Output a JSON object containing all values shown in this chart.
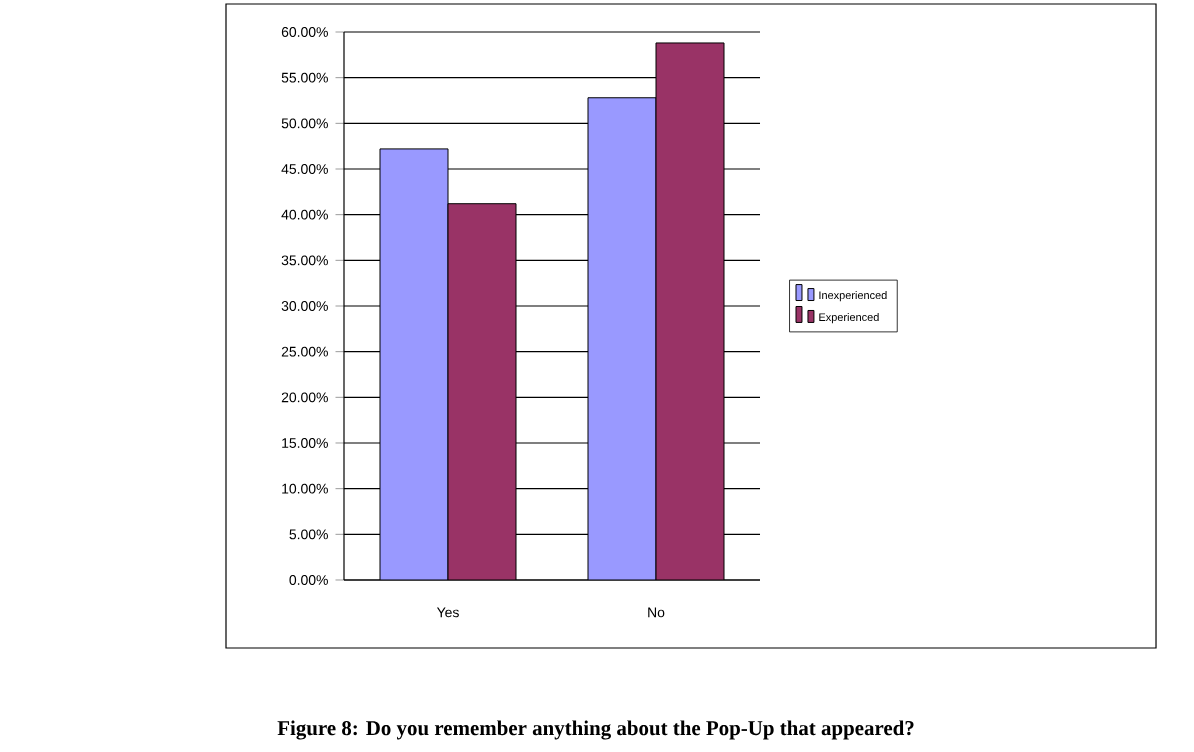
{
  "chart_data": {
    "type": "bar",
    "title": "Figure 8: Do you remember anything about the Pop-Up that appeared?",
    "categories": [
      "Yes",
      "No"
    ],
    "series": [
      {
        "name": "Inexperienced",
        "color": "#9999ff",
        "values": [
          47.2,
          52.8
        ]
      },
      {
        "name": "Experienced",
        "color": "#993366",
        "values": [
          41.2,
          58.8
        ]
      }
    ],
    "ylim": [
      0,
      60
    ],
    "yticks": [
      {
        "value": 0,
        "label": "0.00%"
      },
      {
        "value": 5,
        "label": "5.00%"
      },
      {
        "value": 10,
        "label": "10.00%"
      },
      {
        "value": 15,
        "label": "15.00%"
      },
      {
        "value": 20,
        "label": "20.00%"
      },
      {
        "value": 25,
        "label": "25.00%"
      },
      {
        "value": 30,
        "label": "30.00%"
      },
      {
        "value": 35,
        "label": "35.00%"
      },
      {
        "value": 40,
        "label": "40.00%"
      },
      {
        "value": 45,
        "label": "45.00%"
      },
      {
        "value": 50,
        "label": "50.00%"
      },
      {
        "value": 55,
        "label": "55.00%"
      },
      {
        "value": 60,
        "label": "60.00%"
      }
    ],
    "grid": "y",
    "legend": "right"
  }
}
